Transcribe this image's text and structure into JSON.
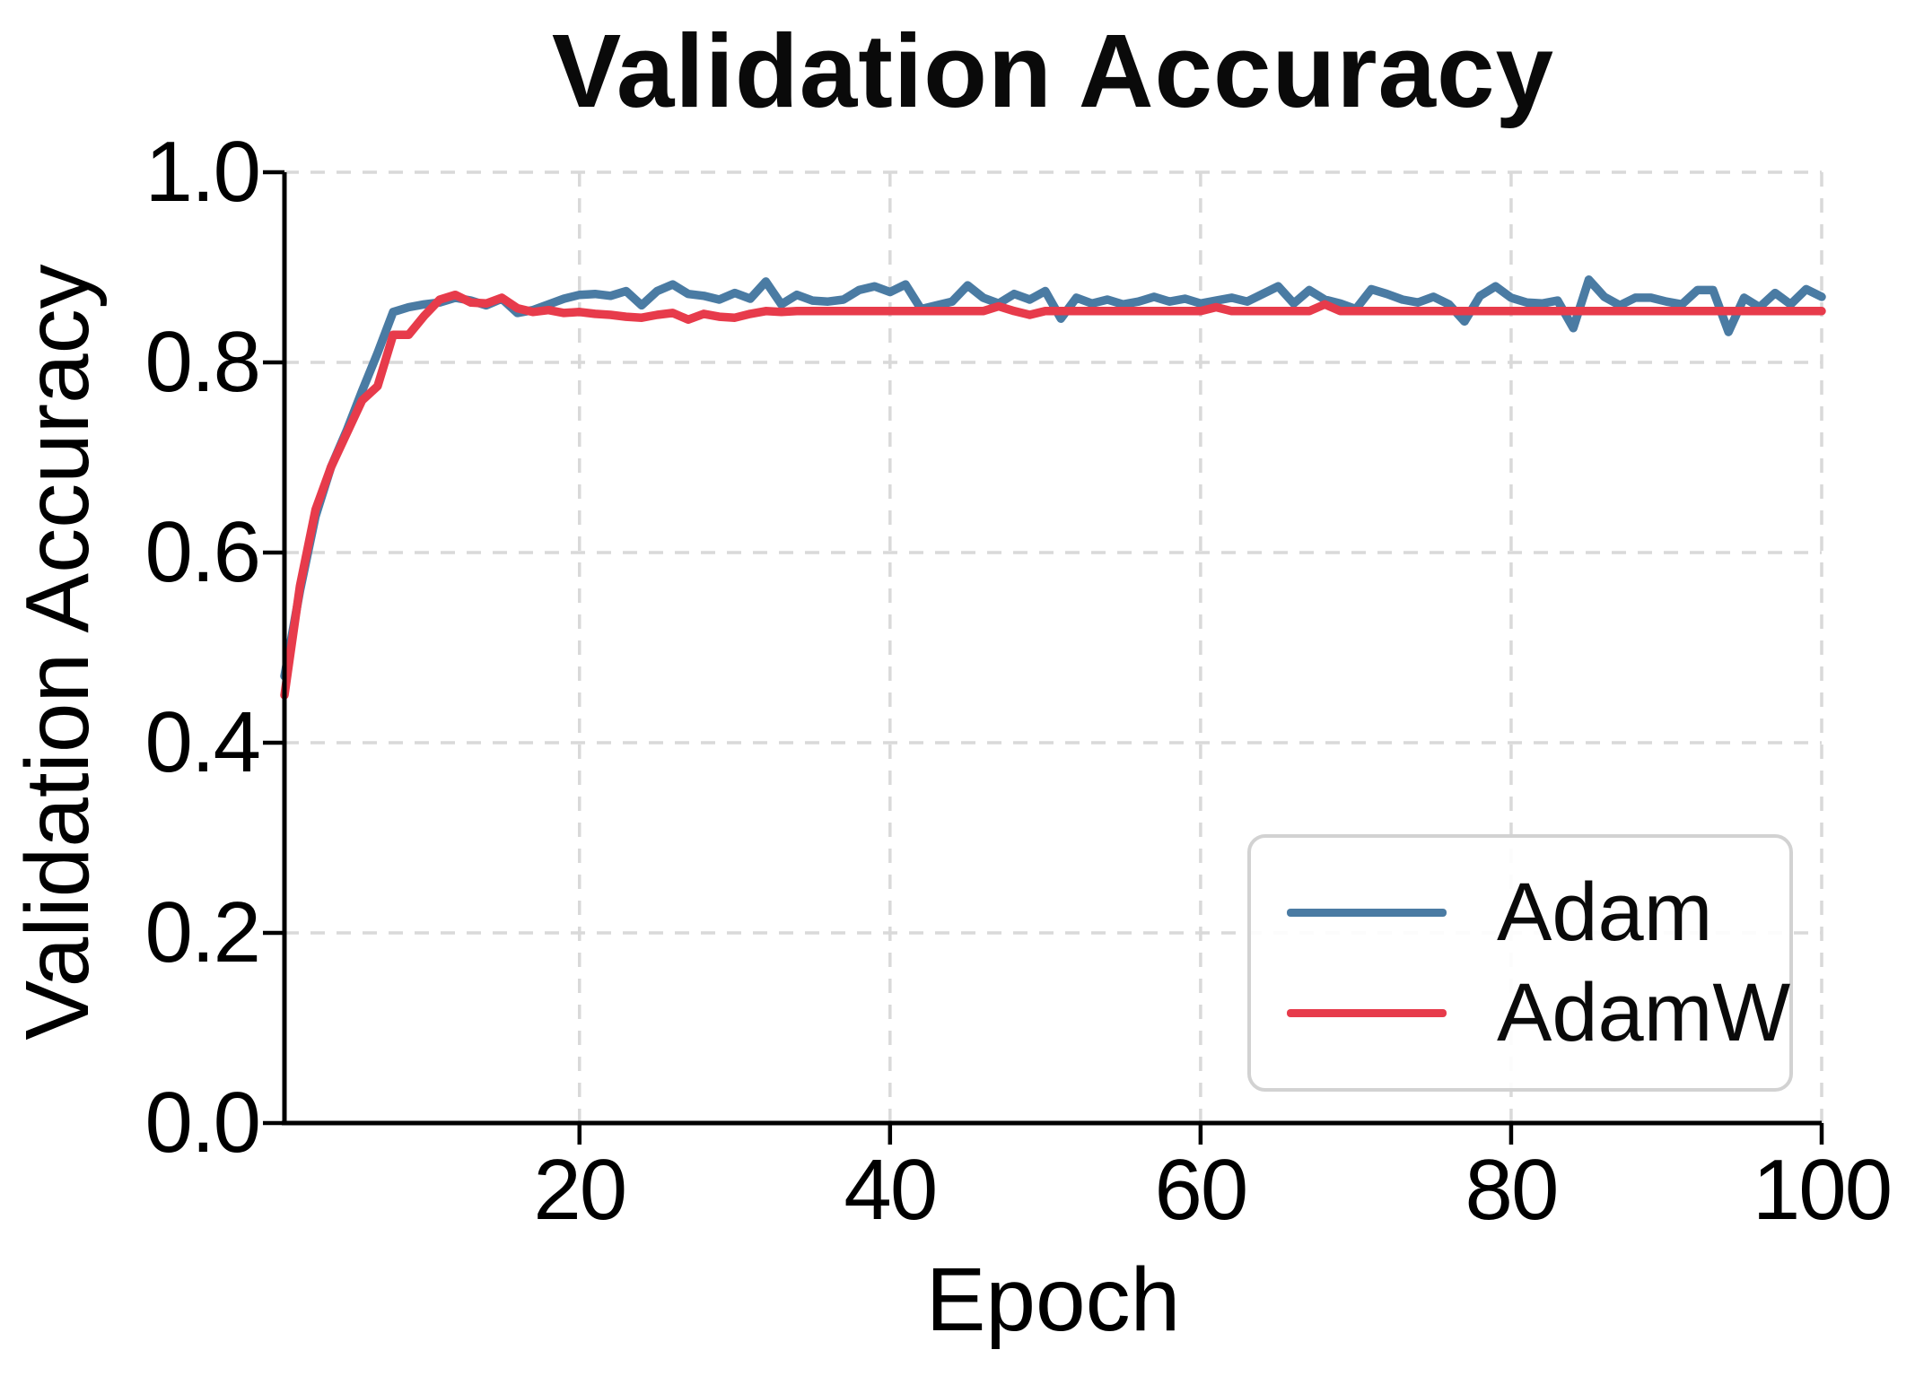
{
  "title": "Validation Accuracy",
  "chart_data": {
    "type": "line",
    "title": "Validation Accuracy",
    "xlabel": "Epoch",
    "ylabel": "Validation Accuracy",
    "xlim": [
      1,
      100
    ],
    "ylim": [
      0.0,
      1.0
    ],
    "x_start": 1,
    "x_end": 100,
    "x_step": 1,
    "x_ticks": [
      20,
      40,
      60,
      80,
      100
    ],
    "x_tick_labels": [
      "20",
      "40",
      "60",
      "80",
      "100"
    ],
    "y_ticks": [
      0.0,
      0.2,
      0.4,
      0.6,
      0.8,
      1.0
    ],
    "y_tick_labels": [
      "0.0",
      "0.2",
      "0.4",
      "0.6",
      "0.8",
      "1.0"
    ],
    "grid": true,
    "grid_style": "dashed",
    "legend_position": "lower-right-inside",
    "series": [
      {
        "name": "Adam",
        "color": "#4a7ba3",
        "values": [
          0.47,
          0.56,
          0.638,
          0.69,
          0.728,
          0.77,
          0.81,
          0.853,
          0.858,
          0.861,
          0.863,
          0.868,
          0.865,
          0.86,
          0.867,
          0.852,
          0.855,
          0.861,
          0.867,
          0.871,
          0.872,
          0.87,
          0.875,
          0.86,
          0.875,
          0.882,
          0.872,
          0.87,
          0.866,
          0.873,
          0.867,
          0.885,
          0.861,
          0.871,
          0.865,
          0.864,
          0.866,
          0.876,
          0.88,
          0.874,
          0.882,
          0.856,
          0.86,
          0.864,
          0.881,
          0.868,
          0.862,
          0.872,
          0.866,
          0.875,
          0.846,
          0.868,
          0.862,
          0.866,
          0.861,
          0.864,
          0.869,
          0.864,
          0.867,
          0.862,
          0.865,
          0.868,
          0.864,
          0.872,
          0.88,
          0.862,
          0.876,
          0.866,
          0.862,
          0.856,
          0.877,
          0.872,
          0.866,
          0.863,
          0.869,
          0.861,
          0.843,
          0.87,
          0.88,
          0.868,
          0.863,
          0.862,
          0.865,
          0.836,
          0.887,
          0.869,
          0.86,
          0.868,
          0.868,
          0.864,
          0.861,
          0.876,
          0.876,
          0.832,
          0.868,
          0.858,
          0.873,
          0.861,
          0.877,
          0.869
        ]
      },
      {
        "name": "AdamW",
        "color": "#e73b4b",
        "values": [
          0.45,
          0.565,
          0.645,
          0.69,
          0.725,
          0.76,
          0.775,
          0.829,
          0.829,
          0.849,
          0.866,
          0.871,
          0.863,
          0.862,
          0.868,
          0.857,
          0.853,
          0.855,
          0.852,
          0.853,
          0.851,
          0.85,
          0.848,
          0.847,
          0.85,
          0.852,
          0.845,
          0.851,
          0.848,
          0.847,
          0.851,
          0.854,
          0.853,
          0.854,
          0.854,
          0.854,
          0.854,
          0.854,
          0.854,
          0.854,
          0.854,
          0.854,
          0.854,
          0.854,
          0.854,
          0.854,
          0.859,
          0.854,
          0.85,
          0.854,
          0.854,
          0.854,
          0.854,
          0.854,
          0.854,
          0.854,
          0.854,
          0.854,
          0.854,
          0.854,
          0.858,
          0.854,
          0.854,
          0.854,
          0.854,
          0.854,
          0.854,
          0.861,
          0.854,
          0.854,
          0.854,
          0.854,
          0.854,
          0.854,
          0.854,
          0.854,
          0.854,
          0.854,
          0.854,
          0.854,
          0.854,
          0.854,
          0.854,
          0.854,
          0.854,
          0.854,
          0.854,
          0.854,
          0.854,
          0.854,
          0.854,
          0.854,
          0.854,
          0.854,
          0.854,
          0.854,
          0.854,
          0.854,
          0.854,
          0.854
        ]
      }
    ]
  },
  "legend": {
    "entries": [
      {
        "label": "Adam",
        "color": "#4a7ba3"
      },
      {
        "label": "AdamW",
        "color": "#e73b4b"
      }
    ]
  },
  "style": {
    "grid_color": "#d9d9d9",
    "spine_color": "#000000",
    "text_color": "#0a0a0a",
    "background": "#ffffff"
  }
}
